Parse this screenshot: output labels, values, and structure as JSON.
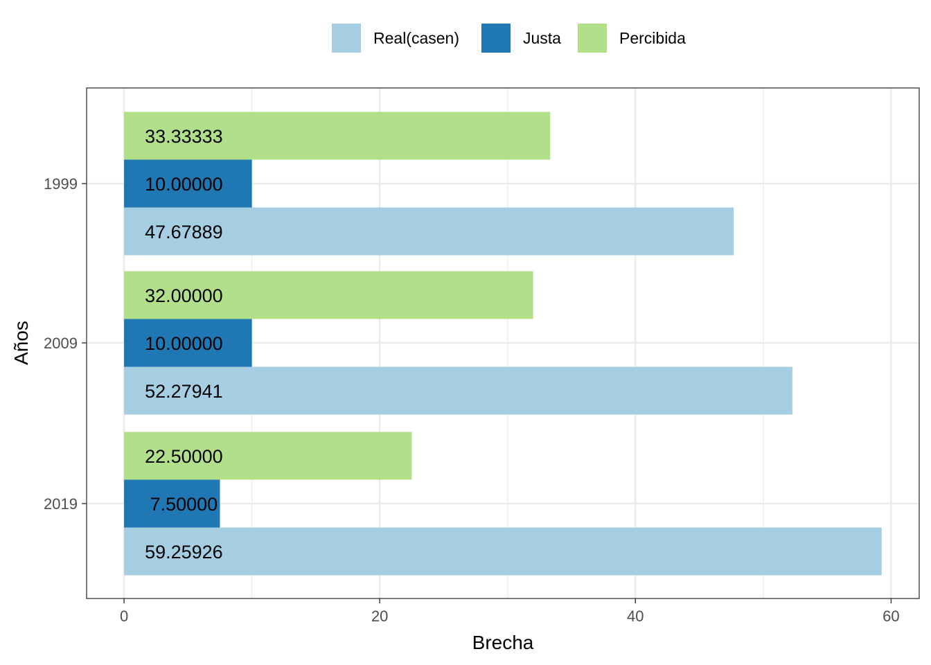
{
  "chart_data": {
    "type": "bar",
    "orientation": "horizontal",
    "categories": [
      "1999",
      "2009",
      "2019"
    ],
    "series": [
      {
        "name": "Real(casen)",
        "color": "#a6cee3",
        "values": [
          47.67889,
          52.27941,
          59.25926
        ],
        "labels": [
          "47.67889",
          "52.27941",
          "59.25926"
        ]
      },
      {
        "name": "Justa",
        "color": "#1f78b4",
        "values": [
          10.0,
          10.0,
          7.5
        ],
        "labels": [
          "10.00000",
          "10.00000",
          " 7.50000"
        ]
      },
      {
        "name": "Percibida",
        "color": "#b2df8a",
        "values": [
          33.33333,
          32.0,
          22.5
        ],
        "labels": [
          "33.33333",
          "32.00000",
          "22.50000"
        ]
      }
    ],
    "xlabel": "Brecha",
    "ylabel": "Años",
    "xlim": [
      -2.93,
      62.2
    ],
    "xticks": [
      0,
      20,
      40,
      60
    ],
    "legend_position": "top",
    "grid": true
  }
}
